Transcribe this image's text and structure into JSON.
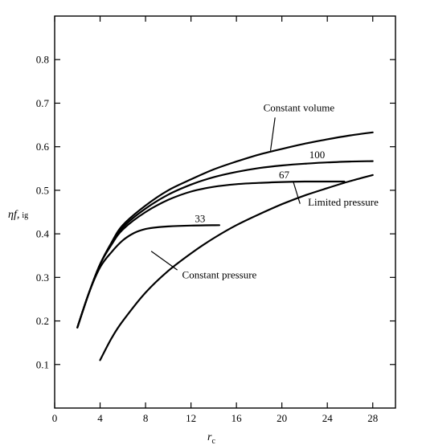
{
  "chart_data": {
    "type": "line",
    "title": "",
    "xlabel": "r_c",
    "xlabel_main": "r",
    "xlabel_sub": "c",
    "ylabel": "ηf, ig",
    "ylabel_main": "ηf,",
    "ylabel_sub": "ig",
    "xlim": [
      0,
      30
    ],
    "ylim": [
      0,
      0.9
    ],
    "grid": false,
    "xticks": [
      0,
      4,
      8,
      12,
      16,
      20,
      24,
      28
    ],
    "yticks": [
      0.1,
      0.2,
      0.3,
      0.4,
      0.5,
      0.6,
      0.7,
      0.8
    ],
    "xtick_labels": [
      "0",
      "4",
      "8",
      "12",
      "16",
      "20",
      "24",
      "28"
    ],
    "ytick_labels": [
      "0.1",
      "0.2",
      "0.3",
      "0.4",
      "0.5",
      "0.6",
      "0.7",
      "0.8"
    ],
    "series": [
      {
        "name": "Constant volume",
        "x": [
          2,
          3,
          4,
          5,
          6,
          8,
          10,
          12,
          14,
          16,
          18,
          20,
          22,
          24,
          26,
          28
        ],
        "y": [
          0.185,
          0.263,
          0.33,
          0.38,
          0.42,
          0.465,
          0.5,
          0.525,
          0.548,
          0.566,
          0.582,
          0.595,
          0.607,
          0.617,
          0.626,
          0.633
        ]
      },
      {
        "name": "100",
        "x": [
          2,
          3,
          4,
          5,
          6,
          8,
          10,
          12,
          14,
          16,
          18,
          20,
          22,
          24,
          26,
          28
        ],
        "y": [
          0.185,
          0.263,
          0.33,
          0.378,
          0.415,
          0.458,
          0.49,
          0.513,
          0.53,
          0.542,
          0.551,
          0.557,
          0.561,
          0.564,
          0.566,
          0.567
        ]
      },
      {
        "name": "67",
        "x": [
          2,
          3,
          4,
          5,
          6,
          8,
          10,
          12,
          14,
          16,
          18,
          20,
          22,
          24,
          25.5
        ],
        "y": [
          0.185,
          0.263,
          0.33,
          0.375,
          0.41,
          0.45,
          0.478,
          0.497,
          0.508,
          0.514,
          0.517,
          0.519,
          0.52,
          0.52,
          0.52
        ]
      },
      {
        "name": "33",
        "x": [
          2,
          3,
          4,
          5,
          6,
          7,
          8,
          9,
          10,
          12,
          14.5
        ],
        "y": [
          0.185,
          0.263,
          0.323,
          0.358,
          0.385,
          0.402,
          0.411,
          0.415,
          0.417,
          0.419,
          0.42
        ]
      },
      {
        "name": "Constant pressure",
        "x": [
          4,
          5,
          6,
          8,
          10,
          12,
          14,
          16,
          18,
          20,
          22,
          24,
          26,
          28
        ],
        "y": [
          0.11,
          0.16,
          0.2,
          0.265,
          0.315,
          0.355,
          0.39,
          0.42,
          0.445,
          0.468,
          0.488,
          0.505,
          0.521,
          0.535
        ]
      }
    ],
    "annotations": [
      {
        "text": "Constant volume",
        "x": 21.5,
        "y": 0.681,
        "anchor": "middle",
        "leader": [
          19.4,
          0.667,
          19.0,
          0.591
        ]
      },
      {
        "text": "100",
        "x": 23.1,
        "y": 0.574,
        "anchor": "middle"
      },
      {
        "text": "67",
        "x": 20.2,
        "y": 0.527,
        "anchor": "middle"
      },
      {
        "text": "Limited pressure",
        "x": 25.4,
        "y": 0.465,
        "anchor": "middle",
        "leader": [
          21.6,
          0.469,
          21.0,
          0.52
        ]
      },
      {
        "text": "33",
        "x": 12.8,
        "y": 0.427,
        "anchor": "middle"
      },
      {
        "text": "Constant pressure",
        "x": 14.5,
        "y": 0.298,
        "anchor": "middle",
        "leader": [
          10.8,
          0.317,
          8.5,
          0.36
        ]
      }
    ]
  }
}
